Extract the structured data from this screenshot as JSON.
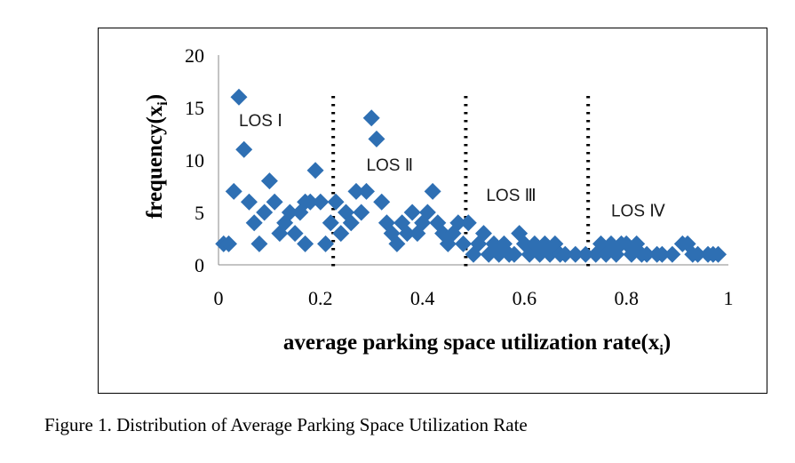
{
  "caption": "Figure 1. Distribution of Average Parking Space Utilization Rate",
  "chart_data": {
    "type": "scatter",
    "xlabel_main": "average parking space utilization rate(x",
    "xlabel_sub": "i",
    "xlabel_end": ")",
    "ylabel_main": "frequency(x",
    "ylabel_sub": "i",
    "ylabel_end": ")",
    "xlim": [
      0,
      1
    ],
    "ylim": [
      0,
      20
    ],
    "x_ticks": [
      0,
      0.2,
      0.4,
      0.6,
      0.8,
      1
    ],
    "x_tick_labels": [
      "0",
      "0.2",
      "0.4",
      "0.6",
      "0.8",
      "1"
    ],
    "y_ticks": [
      0,
      5,
      10,
      15,
      20
    ],
    "y_tick_labels": [
      "0",
      "5",
      "10",
      "15",
      "20"
    ],
    "marker": "diamond",
    "marker_color": "#2e6fb3",
    "grid": false,
    "divider_x": [
      0.225,
      0.485,
      0.725
    ],
    "regions": [
      {
        "label": "LOS Ⅰ",
        "x": 0.04,
        "y": 13.2
      },
      {
        "label": "LOS Ⅱ",
        "x": 0.29,
        "y": 9.0
      },
      {
        "label": "LOS Ⅲ",
        "x": 0.525,
        "y": 6.1
      },
      {
        "label": "LOS Ⅳ",
        "x": 0.77,
        "y": 4.6
      }
    ],
    "points": [
      [
        0.01,
        2
      ],
      [
        0.02,
        2
      ],
      [
        0.03,
        7
      ],
      [
        0.04,
        16
      ],
      [
        0.05,
        11
      ],
      [
        0.06,
        6
      ],
      [
        0.07,
        4
      ],
      [
        0.08,
        2
      ],
      [
        0.09,
        5
      ],
      [
        0.1,
        8
      ],
      [
        0.11,
        6
      ],
      [
        0.12,
        3
      ],
      [
        0.13,
        4
      ],
      [
        0.14,
        5
      ],
      [
        0.15,
        3
      ],
      [
        0.16,
        5
      ],
      [
        0.17,
        6
      ],
      [
        0.17,
        2
      ],
      [
        0.18,
        6
      ],
      [
        0.19,
        9
      ],
      [
        0.2,
        6
      ],
      [
        0.21,
        2
      ],
      [
        0.22,
        4
      ],
      [
        0.23,
        6
      ],
      [
        0.24,
        3
      ],
      [
        0.25,
        5
      ],
      [
        0.26,
        4
      ],
      [
        0.27,
        7
      ],
      [
        0.28,
        5
      ],
      [
        0.29,
        7
      ],
      [
        0.3,
        14
      ],
      [
        0.31,
        12
      ],
      [
        0.32,
        6
      ],
      [
        0.33,
        4
      ],
      [
        0.34,
        3
      ],
      [
        0.35,
        2
      ],
      [
        0.36,
        4
      ],
      [
        0.37,
        3
      ],
      [
        0.38,
        5
      ],
      [
        0.39,
        3
      ],
      [
        0.4,
        4
      ],
      [
        0.41,
        5
      ],
      [
        0.42,
        7
      ],
      [
        0.43,
        4
      ],
      [
        0.44,
        3
      ],
      [
        0.45,
        2
      ],
      [
        0.46,
        3
      ],
      [
        0.47,
        4
      ],
      [
        0.48,
        2
      ],
      [
        0.49,
        4
      ],
      [
        0.5,
        1
      ],
      [
        0.51,
        2
      ],
      [
        0.52,
        3
      ],
      [
        0.53,
        1
      ],
      [
        0.54,
        2
      ],
      [
        0.55,
        1
      ],
      [
        0.56,
        2
      ],
      [
        0.57,
        1
      ],
      [
        0.58,
        1
      ],
      [
        0.59,
        3
      ],
      [
        0.6,
        2
      ],
      [
        0.61,
        1
      ],
      [
        0.62,
        2
      ],
      [
        0.63,
        1
      ],
      [
        0.64,
        2
      ],
      [
        0.65,
        1
      ],
      [
        0.66,
        2
      ],
      [
        0.67,
        1
      ],
      [
        0.68,
        1
      ],
      [
        0.7,
        1
      ],
      [
        0.72,
        1
      ],
      [
        0.74,
        1
      ],
      [
        0.75,
        2
      ],
      [
        0.76,
        1
      ],
      [
        0.77,
        2
      ],
      [
        0.78,
        1
      ],
      [
        0.79,
        2
      ],
      [
        0.8,
        2
      ],
      [
        0.81,
        1
      ],
      [
        0.82,
        2
      ],
      [
        0.83,
        1
      ],
      [
        0.84,
        1
      ],
      [
        0.86,
        1
      ],
      [
        0.87,
        1
      ],
      [
        0.89,
        1
      ],
      [
        0.91,
        2
      ],
      [
        0.92,
        2
      ],
      [
        0.93,
        1
      ],
      [
        0.94,
        1
      ],
      [
        0.96,
        1
      ],
      [
        0.97,
        1
      ],
      [
        0.98,
        1
      ]
    ]
  }
}
